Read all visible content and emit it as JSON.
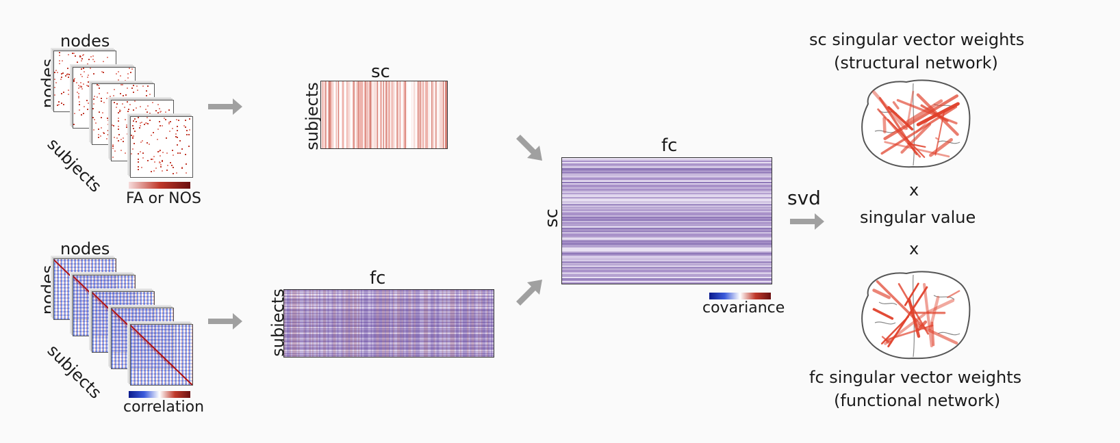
{
  "diagram": {
    "sc_stack": {
      "nodes_top": "nodes",
      "nodes_side": "nodes",
      "subjects": "subjects",
      "colorbar_label": "FA or NOS"
    },
    "fc_stack": {
      "nodes_top": "nodes",
      "nodes_side": "nodes",
      "subjects": "subjects",
      "colorbar_label": "correlation"
    },
    "sc_matrix": {
      "title": "sc",
      "ylabel": "subjects"
    },
    "fc_matrix": {
      "title": "fc",
      "ylabel": "subjects"
    },
    "cov_matrix": {
      "title": "fc",
      "ylabel": "sc",
      "colorbar_label": "covariance"
    },
    "svd_label": "svd",
    "right": {
      "sc_title_line1": "sc singular vector weights",
      "sc_title_line2": "(structural network)",
      "times1": "x",
      "singular_value": "singular value",
      "times2": "x",
      "fc_title_line1": "fc singular vector weights",
      "fc_title_line2": "(functional network)"
    }
  },
  "colors": {
    "arrow": "#a0a0a0",
    "sc_red": "#c0392b",
    "fc_blue": "#2c3fb0",
    "purple": "#8e7ab5",
    "edge_red": "#e0402a"
  }
}
